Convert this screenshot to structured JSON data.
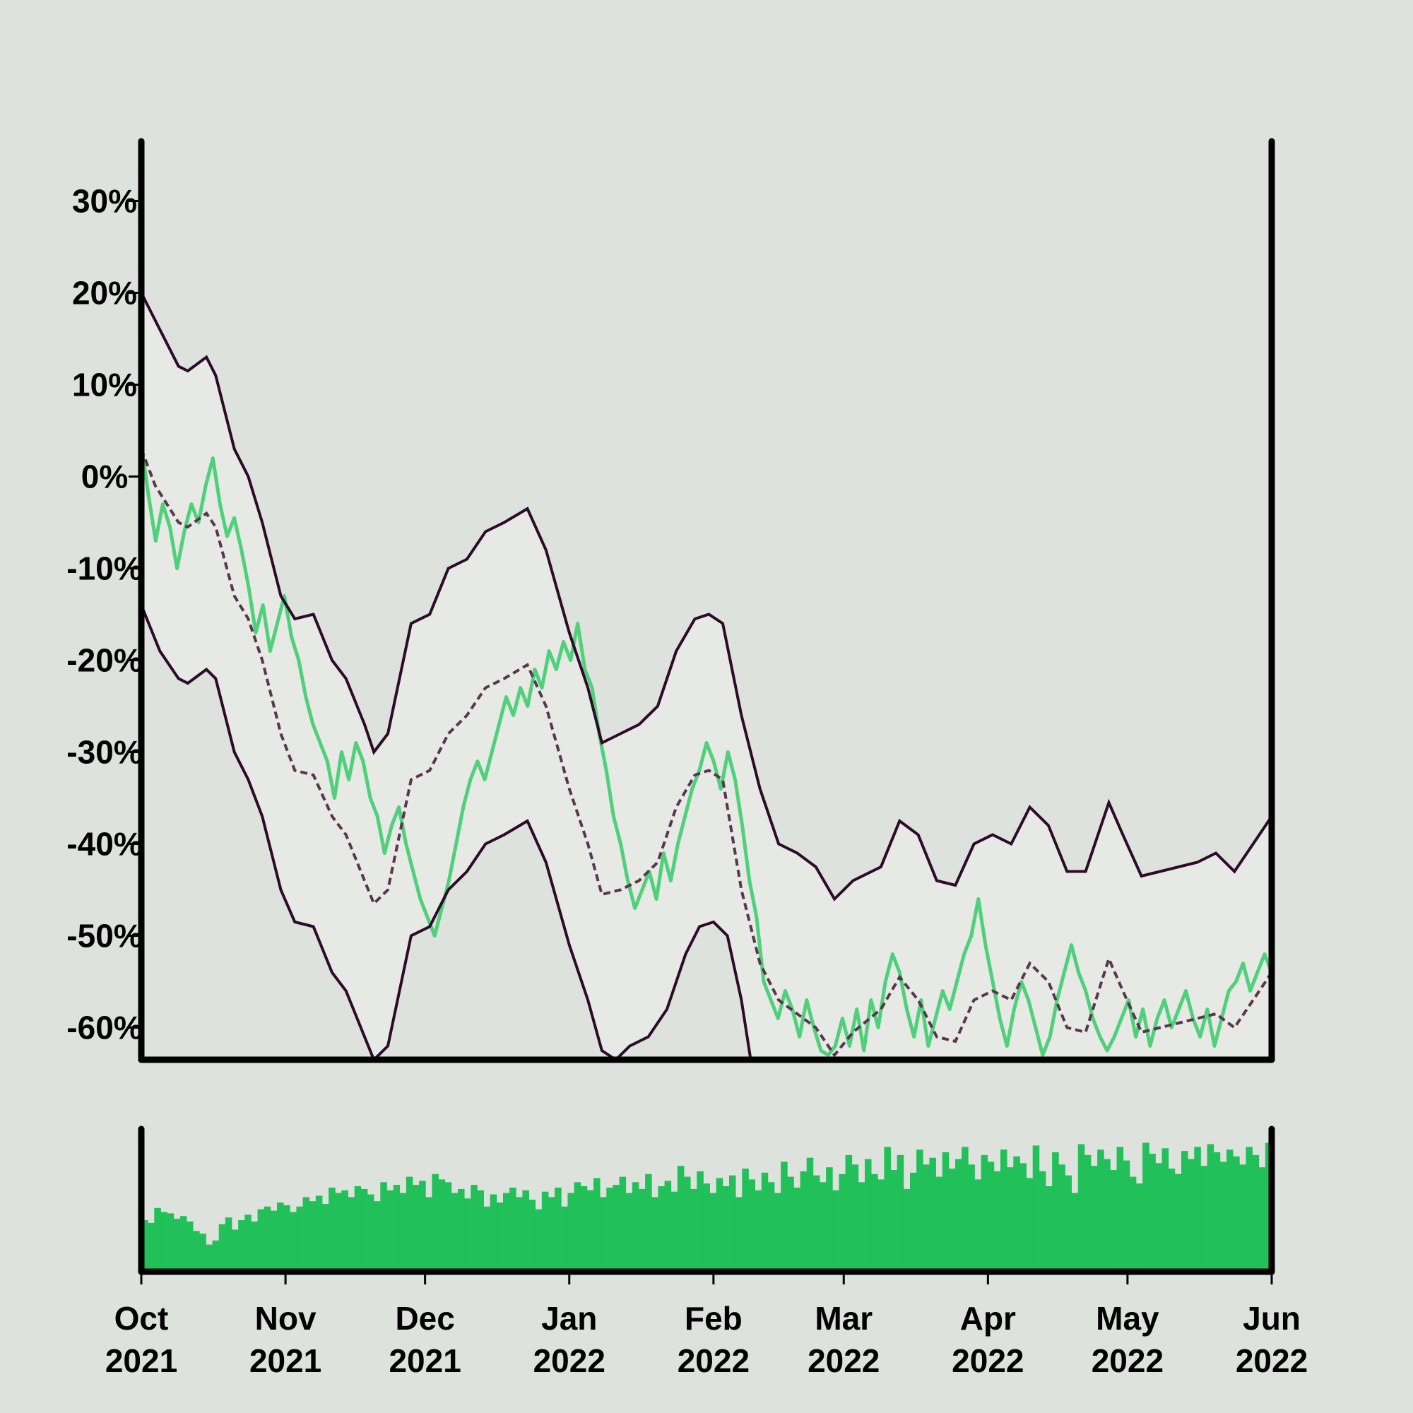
{
  "chart_data": {
    "type": "line",
    "title": "",
    "xlabel": "",
    "ylabel": "",
    "x_range": [
      "2021-10-01",
      "2022-06-01"
    ],
    "ylim": [
      -63.5,
      36.5
    ],
    "y_ticks": [
      {
        "value": 30,
        "label": "30%"
      },
      {
        "value": 20,
        "label": "20%"
      },
      {
        "value": 10,
        "label": "10%"
      },
      {
        "value": 0,
        "label": "0%"
      },
      {
        "value": -10,
        "label": "-10%"
      },
      {
        "value": -20,
        "label": "-20%"
      },
      {
        "value": -30,
        "label": "-30%"
      },
      {
        "value": -40,
        "label": "-40%"
      },
      {
        "value": -50,
        "label": "-50%"
      },
      {
        "value": -60,
        "label": "-60%"
      }
    ],
    "x_ticks": [
      {
        "date": "2021-10-01",
        "month": "Oct",
        "year": "2021"
      },
      {
        "date": "2021-11-01",
        "month": "Nov",
        "year": "2021"
      },
      {
        "date": "2021-12-01",
        "month": "Dec",
        "year": "2021"
      },
      {
        "date": "2022-01-01",
        "month": "Jan",
        "year": "2022"
      },
      {
        "date": "2022-02-01",
        "month": "Feb",
        "year": "2022"
      },
      {
        "date": "2022-03-01",
        "month": "Mar",
        "year": "2022"
      },
      {
        "date": "2022-04-01",
        "month": "Apr",
        "year": "2022"
      },
      {
        "date": "2022-05-01",
        "month": "May",
        "year": "2022"
      },
      {
        "date": "2022-06-01",
        "month": "Jun",
        "year": "2022"
      }
    ],
    "grid": false,
    "legend": "none",
    "colors": {
      "background": "#dde2dc",
      "band_fill": "#e6e9e4",
      "price": "#4fd07a",
      "bands": "#2e0a2a",
      "moving_average": "#5a3550",
      "volume": "#21c058",
      "axis": "#000000"
    },
    "series": [
      {
        "style": "upper-band",
        "points": [
          [
            "2021-10-01",
            20
          ],
          [
            "2021-10-05",
            16
          ],
          [
            "2021-10-09",
            12
          ],
          [
            "2021-10-11",
            11.5
          ],
          [
            "2021-10-15",
            13
          ],
          [
            "2021-10-17",
            11
          ],
          [
            "2021-10-21",
            3
          ],
          [
            "2021-10-24",
            0
          ],
          [
            "2021-10-27",
            -5
          ],
          [
            "2021-10-31",
            -13
          ],
          [
            "2021-11-03",
            -15.5
          ],
          [
            "2021-11-07",
            -15
          ],
          [
            "2021-11-11",
            -20
          ],
          [
            "2021-11-14",
            -22
          ],
          [
            "2021-11-18",
            -27
          ],
          [
            "2021-11-20",
            -30
          ],
          [
            "2021-11-23",
            -28
          ],
          [
            "2021-11-28",
            -16
          ],
          [
            "2021-12-02",
            -15
          ],
          [
            "2021-12-06",
            -10
          ],
          [
            "2021-12-10",
            -9
          ],
          [
            "2021-12-14",
            -6
          ],
          [
            "2021-12-18",
            -5
          ],
          [
            "2021-12-23",
            -3.5
          ],
          [
            "2021-12-27",
            -8
          ],
          [
            "2022-01-01",
            -17
          ],
          [
            "2022-01-05",
            -23
          ],
          [
            "2022-01-08",
            -29
          ],
          [
            "2022-01-12",
            -28
          ],
          [
            "2022-01-16",
            -27
          ],
          [
            "2022-01-20",
            -25
          ],
          [
            "2022-01-24",
            -19
          ],
          [
            "2022-01-28",
            -15.5
          ],
          [
            "2022-01-31",
            -15
          ],
          [
            "2022-02-03",
            -16
          ],
          [
            "2022-02-07",
            -26
          ],
          [
            "2022-02-11",
            -34
          ],
          [
            "2022-02-15",
            -40
          ],
          [
            "2022-02-19",
            -41
          ],
          [
            "2022-02-23",
            -42.5
          ],
          [
            "2022-02-27",
            -46
          ],
          [
            "2022-03-03",
            -44
          ],
          [
            "2022-03-09",
            -42.5
          ],
          [
            "2022-03-13",
            -37.5
          ],
          [
            "2022-03-17",
            -39
          ],
          [
            "2022-03-21",
            -44
          ],
          [
            "2022-03-25",
            -44.5
          ],
          [
            "2022-03-29",
            -40
          ],
          [
            "2022-04-02",
            -39
          ],
          [
            "2022-04-06",
            -40
          ],
          [
            "2022-04-10",
            -36
          ],
          [
            "2022-04-14",
            -38
          ],
          [
            "2022-04-18",
            -43
          ],
          [
            "2022-04-22",
            -43
          ],
          [
            "2022-04-27",
            -35.5
          ],
          [
            "2022-04-30",
            -39
          ],
          [
            "2022-05-04",
            -43.5
          ],
          [
            "2022-05-08",
            -43
          ],
          [
            "2022-05-12",
            -42.5
          ],
          [
            "2022-05-16",
            -42
          ],
          [
            "2022-05-20",
            -41
          ],
          [
            "2022-05-24",
            -43
          ],
          [
            "2022-05-28",
            -40
          ],
          [
            "2022-06-01",
            -37
          ]
        ]
      },
      {
        "style": "moving-average",
        "points": [
          [
            "2021-10-01",
            3
          ],
          [
            "2021-10-04",
            -1
          ],
          [
            "2021-10-09",
            -5
          ],
          [
            "2021-10-11",
            -5.5
          ],
          [
            "2021-10-15",
            -4
          ],
          [
            "2021-10-17",
            -5.5
          ],
          [
            "2021-10-21",
            -13
          ],
          [
            "2021-10-24",
            -15.5
          ],
          [
            "2021-10-27",
            -20
          ],
          [
            "2021-10-31",
            -28
          ],
          [
            "2021-11-03",
            -32
          ],
          [
            "2021-11-07",
            -32.5
          ],
          [
            "2021-11-11",
            -37
          ],
          [
            "2021-11-14",
            -39
          ],
          [
            "2021-11-18",
            -44
          ],
          [
            "2021-11-20",
            -46.5
          ],
          [
            "2021-11-23",
            -45
          ],
          [
            "2021-11-28",
            -33
          ],
          [
            "2021-12-02",
            -32
          ],
          [
            "2021-12-06",
            -28
          ],
          [
            "2021-12-10",
            -26
          ],
          [
            "2021-12-14",
            -23
          ],
          [
            "2021-12-18",
            -22
          ],
          [
            "2021-12-23",
            -20.5
          ],
          [
            "2021-12-27",
            -25
          ],
          [
            "2022-01-01",
            -34
          ],
          [
            "2022-01-05",
            -40
          ],
          [
            "2022-01-08",
            -45.5
          ],
          [
            "2022-01-12",
            -45
          ],
          [
            "2022-01-16",
            -44
          ],
          [
            "2022-01-20",
            -42
          ],
          [
            "2022-01-24",
            -36
          ],
          [
            "2022-01-28",
            -32.5
          ],
          [
            "2022-01-31",
            -32
          ],
          [
            "2022-02-03",
            -33
          ],
          [
            "2022-02-07",
            -45
          ],
          [
            "2022-02-11",
            -53
          ],
          [
            "2022-02-15",
            -57
          ],
          [
            "2022-02-19",
            -58.5
          ],
          [
            "2022-02-23",
            -60
          ],
          [
            "2022-02-27",
            -63
          ],
          [
            "2022-03-03",
            -60.5
          ],
          [
            "2022-03-09",
            -58
          ],
          [
            "2022-03-13",
            -54.5
          ],
          [
            "2022-03-17",
            -57
          ],
          [
            "2022-03-21",
            -61
          ],
          [
            "2022-03-25",
            -61.5
          ],
          [
            "2022-03-29",
            -57
          ],
          [
            "2022-04-02",
            -56
          ],
          [
            "2022-04-06",
            -57
          ],
          [
            "2022-04-10",
            -53
          ],
          [
            "2022-04-14",
            -55
          ],
          [
            "2022-04-18",
            -60
          ],
          [
            "2022-04-22",
            -60.5
          ],
          [
            "2022-04-27",
            -52.5
          ],
          [
            "2022-04-30",
            -56
          ],
          [
            "2022-05-04",
            -60.5
          ],
          [
            "2022-05-08",
            -60
          ],
          [
            "2022-05-12",
            -59.5
          ],
          [
            "2022-05-16",
            -59
          ],
          [
            "2022-05-20",
            -58.5
          ],
          [
            "2022-05-24",
            -60
          ],
          [
            "2022-05-28",
            -57
          ],
          [
            "2022-06-01",
            -54
          ]
        ]
      },
      {
        "style": "lower-band",
        "points": [
          [
            "2021-10-01",
            -14
          ],
          [
            "2021-10-05",
            -19
          ],
          [
            "2021-10-09",
            -22
          ],
          [
            "2021-10-11",
            -22.5
          ],
          [
            "2021-10-15",
            -21
          ],
          [
            "2021-10-17",
            -22
          ],
          [
            "2021-10-21",
            -30
          ],
          [
            "2021-10-24",
            -33
          ],
          [
            "2021-10-27",
            -37
          ],
          [
            "2021-10-31",
            -45
          ],
          [
            "2021-11-03",
            -48.5
          ],
          [
            "2021-11-07",
            -49
          ],
          [
            "2021-11-11",
            -54
          ],
          [
            "2021-11-14",
            -56
          ],
          [
            "2021-11-18",
            -61
          ],
          [
            "2021-11-20",
            -63.5
          ],
          [
            "2021-11-23",
            -62
          ],
          [
            "2021-11-28",
            -50
          ],
          [
            "2021-12-02",
            -49
          ],
          [
            "2021-12-06",
            -45
          ],
          [
            "2021-12-10",
            -43
          ],
          [
            "2021-12-14",
            -40
          ],
          [
            "2021-12-18",
            -39
          ],
          [
            "2021-12-23",
            -37.5
          ],
          [
            "2021-12-27",
            -42
          ],
          [
            "2022-01-01",
            -51
          ],
          [
            "2022-01-05",
            -57
          ],
          [
            "2022-01-08",
            -62.5
          ],
          [
            "2022-01-11",
            -63.5
          ],
          [
            "2022-01-14",
            -62
          ],
          [
            "2022-01-18",
            -61
          ],
          [
            "2022-01-22",
            -58
          ],
          [
            "2022-01-26",
            -52
          ],
          [
            "2022-01-29",
            -49
          ],
          [
            "2022-02-01",
            -48.5
          ],
          [
            "2022-02-04",
            -50
          ],
          [
            "2022-02-07",
            -57
          ],
          [
            "2022-02-09",
            -63.5
          ]
        ]
      }
    ],
    "price": {
      "start": 3.5,
      "values": [
        3.5,
        -2,
        -7,
        -3,
        -5.5,
        -10,
        -6,
        -3,
        -5,
        -1,
        2,
        -3,
        -6.5,
        -4.5,
        -8,
        -12,
        -17,
        -14,
        -19,
        -16,
        -13,
        -17.5,
        -20,
        -24,
        -27,
        -29,
        -31,
        -35,
        -30,
        -33,
        -29,
        -31,
        -35,
        -37,
        -41,
        -38,
        -36,
        -40,
        -43,
        -46,
        -48,
        -50,
        -47,
        -44,
        -40,
        -36,
        -33,
        -31,
        -33,
        -30,
        -27,
        -24,
        -26,
        -23,
        -25,
        -21,
        -23,
        -19,
        -21,
        -18,
        -20,
        -16,
        -21,
        -23,
        -28,
        -32,
        -37,
        -40,
        -44,
        -47,
        -45,
        -43,
        -46,
        -41,
        -44,
        -40,
        -37,
        -34,
        -32,
        -29,
        -31,
        -34,
        -30,
        -33,
        -38,
        -44,
        -48,
        -55,
        -57,
        -59,
        -56,
        -58,
        -61,
        -57,
        -60,
        -62.5,
        -63,
        -62,
        -59,
        -62,
        -58,
        -62.5,
        -57,
        -60,
        -55,
        -52,
        -54,
        -58,
        -61,
        -57,
        -62,
        -59,
        -56,
        -58,
        -55,
        -52,
        -50,
        -46,
        -51,
        -55,
        -59,
        -62,
        -58,
        -55,
        -57,
        -60,
        -63,
        -61,
        -57,
        -54,
        -51,
        -54,
        -56,
        -59,
        -61,
        -62.5,
        -61,
        -59,
        -57,
        -61,
        -58,
        -62,
        -59,
        -57,
        -60,
        -58,
        -56,
        -59,
        -61,
        -58,
        -62,
        -59,
        -56,
        -55,
        -53,
        -56,
        -54,
        -52,
        -54
      ]
    },
    "volume": {
      "max": 100,
      "values": [
        38,
        36,
        47,
        44,
        43,
        39,
        41,
        37,
        30,
        28,
        20,
        23,
        35,
        40,
        31,
        38,
        42,
        37,
        46,
        48,
        45,
        51,
        49,
        44,
        48,
        55,
        52,
        56,
        50,
        62,
        58,
        60,
        55,
        63,
        61,
        57,
        52,
        66,
        60,
        64,
        58,
        70,
        64,
        67,
        55,
        72,
        68,
        66,
        58,
        61,
        54,
        64,
        60,
        48,
        57,
        51,
        58,
        62,
        55,
        60,
        53,
        46,
        59,
        55,
        62,
        48,
        58,
        66,
        63,
        60,
        69,
        55,
        62,
        64,
        70,
        58,
        66,
        61,
        72,
        55,
        63,
        67,
        59,
        78,
        70,
        61,
        74,
        65,
        58,
        69,
        63,
        71,
        55,
        76,
        68,
        60,
        73,
        66,
        58,
        81,
        70,
        62,
        74,
        84,
        71,
        66,
        77,
        60,
        72,
        86,
        79,
        66,
        83,
        72,
        68,
        92,
        75,
        86,
        61,
        73,
        90,
        79,
        84,
        70,
        88,
        76,
        83,
        92,
        79,
        68,
        86,
        81,
        74,
        90,
        77,
        85,
        80,
        69,
        93,
        74,
        63,
        88,
        79,
        71,
        58,
        94,
        86,
        78,
        90,
        83,
        75,
        92,
        82,
        70,
        65,
        95,
        87,
        80,
        91,
        76,
        72,
        89,
        83,
        92,
        78,
        94,
        88,
        81,
        90,
        85,
        79,
        92,
        86,
        77,
        95
      ]
    }
  }
}
